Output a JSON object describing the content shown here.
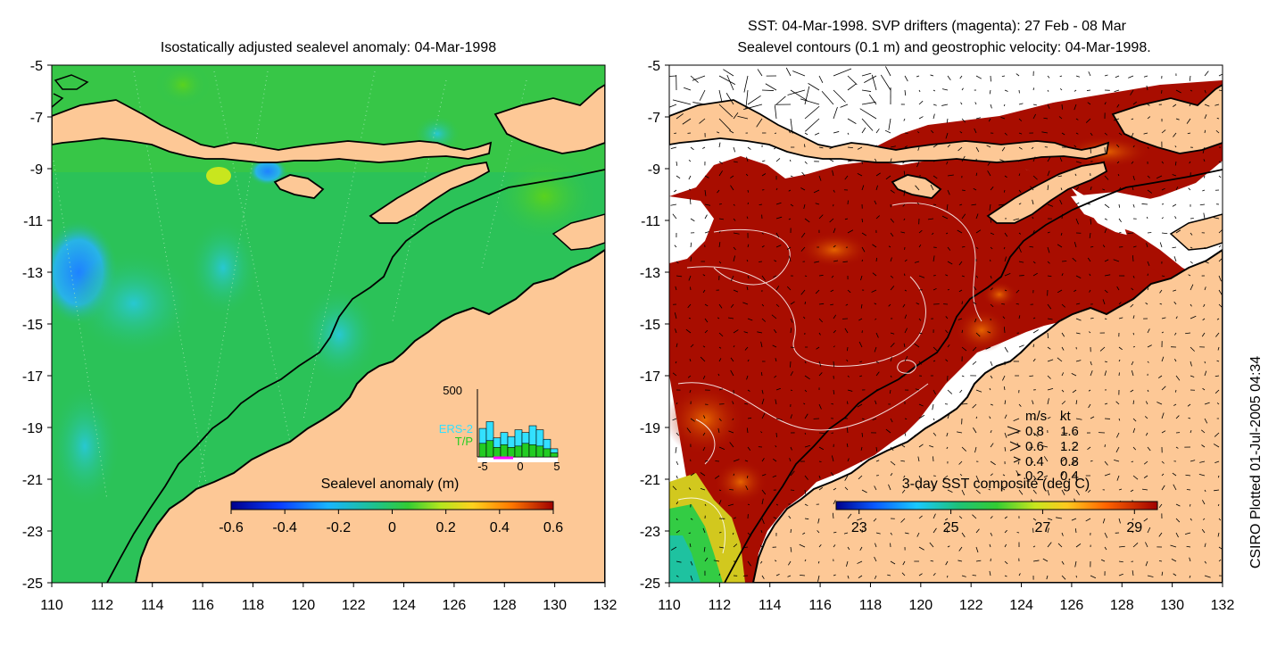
{
  "left_panel": {
    "title": "Isostatically adjusted sealevel anomaly: 04-Mar-1998",
    "colorbar_title": "Sealevel anomaly (m)",
    "colorbar_ticks": [
      "-0.6",
      "-0.4",
      "-0.2",
      "0",
      "0.2",
      "0.4",
      "0.6"
    ],
    "inset": {
      "ymax_label": "500",
      "legend": [
        "ERS-2",
        "T/P"
      ],
      "x_ticks": [
        "-5",
        "0",
        "5"
      ],
      "ers2_color": "#33e0ff",
      "tp_color": "#22cc22"
    }
  },
  "right_panel": {
    "title_line1": "SST: 04-Mar-1998. SVP drifters (magenta): 27 Feb - 08 Mar",
    "title_line2": "Sealevel contours (0.1 m) and geostrophic velocity: 04-Mar-1998.",
    "colorbar_title": "3-day SST composite (deg C)",
    "colorbar_ticks": [
      "23",
      "25",
      "27",
      "29"
    ],
    "velocity_legend": {
      "header_ms": "m/s",
      "header_kt": "kt",
      "rows": [
        {
          "ms": "0.8",
          "kt": "1.6"
        },
        {
          "ms": "0.6",
          "kt": "1.2"
        },
        {
          "ms": "0.4",
          "kt": "0.8"
        },
        {
          "ms": "0.2",
          "kt": "0.4"
        }
      ]
    }
  },
  "axes": {
    "lat_ticks": [
      "-5",
      "-7",
      "-9",
      "-11",
      "-13",
      "-15",
      "-17",
      "-19",
      "-21",
      "-23",
      "-25"
    ],
    "lon_ticks": [
      "110",
      "112",
      "114",
      "116",
      "118",
      "120",
      "122",
      "124",
      "126",
      "128",
      "130",
      "132"
    ]
  },
  "credit": "CSIRO Plotted 01-Jul-2005 04:34",
  "colors": {
    "land": "#fdc896",
    "ocean_green": "#2bc258",
    "sst_warm": "#a80d00",
    "coast": "#000000"
  }
}
